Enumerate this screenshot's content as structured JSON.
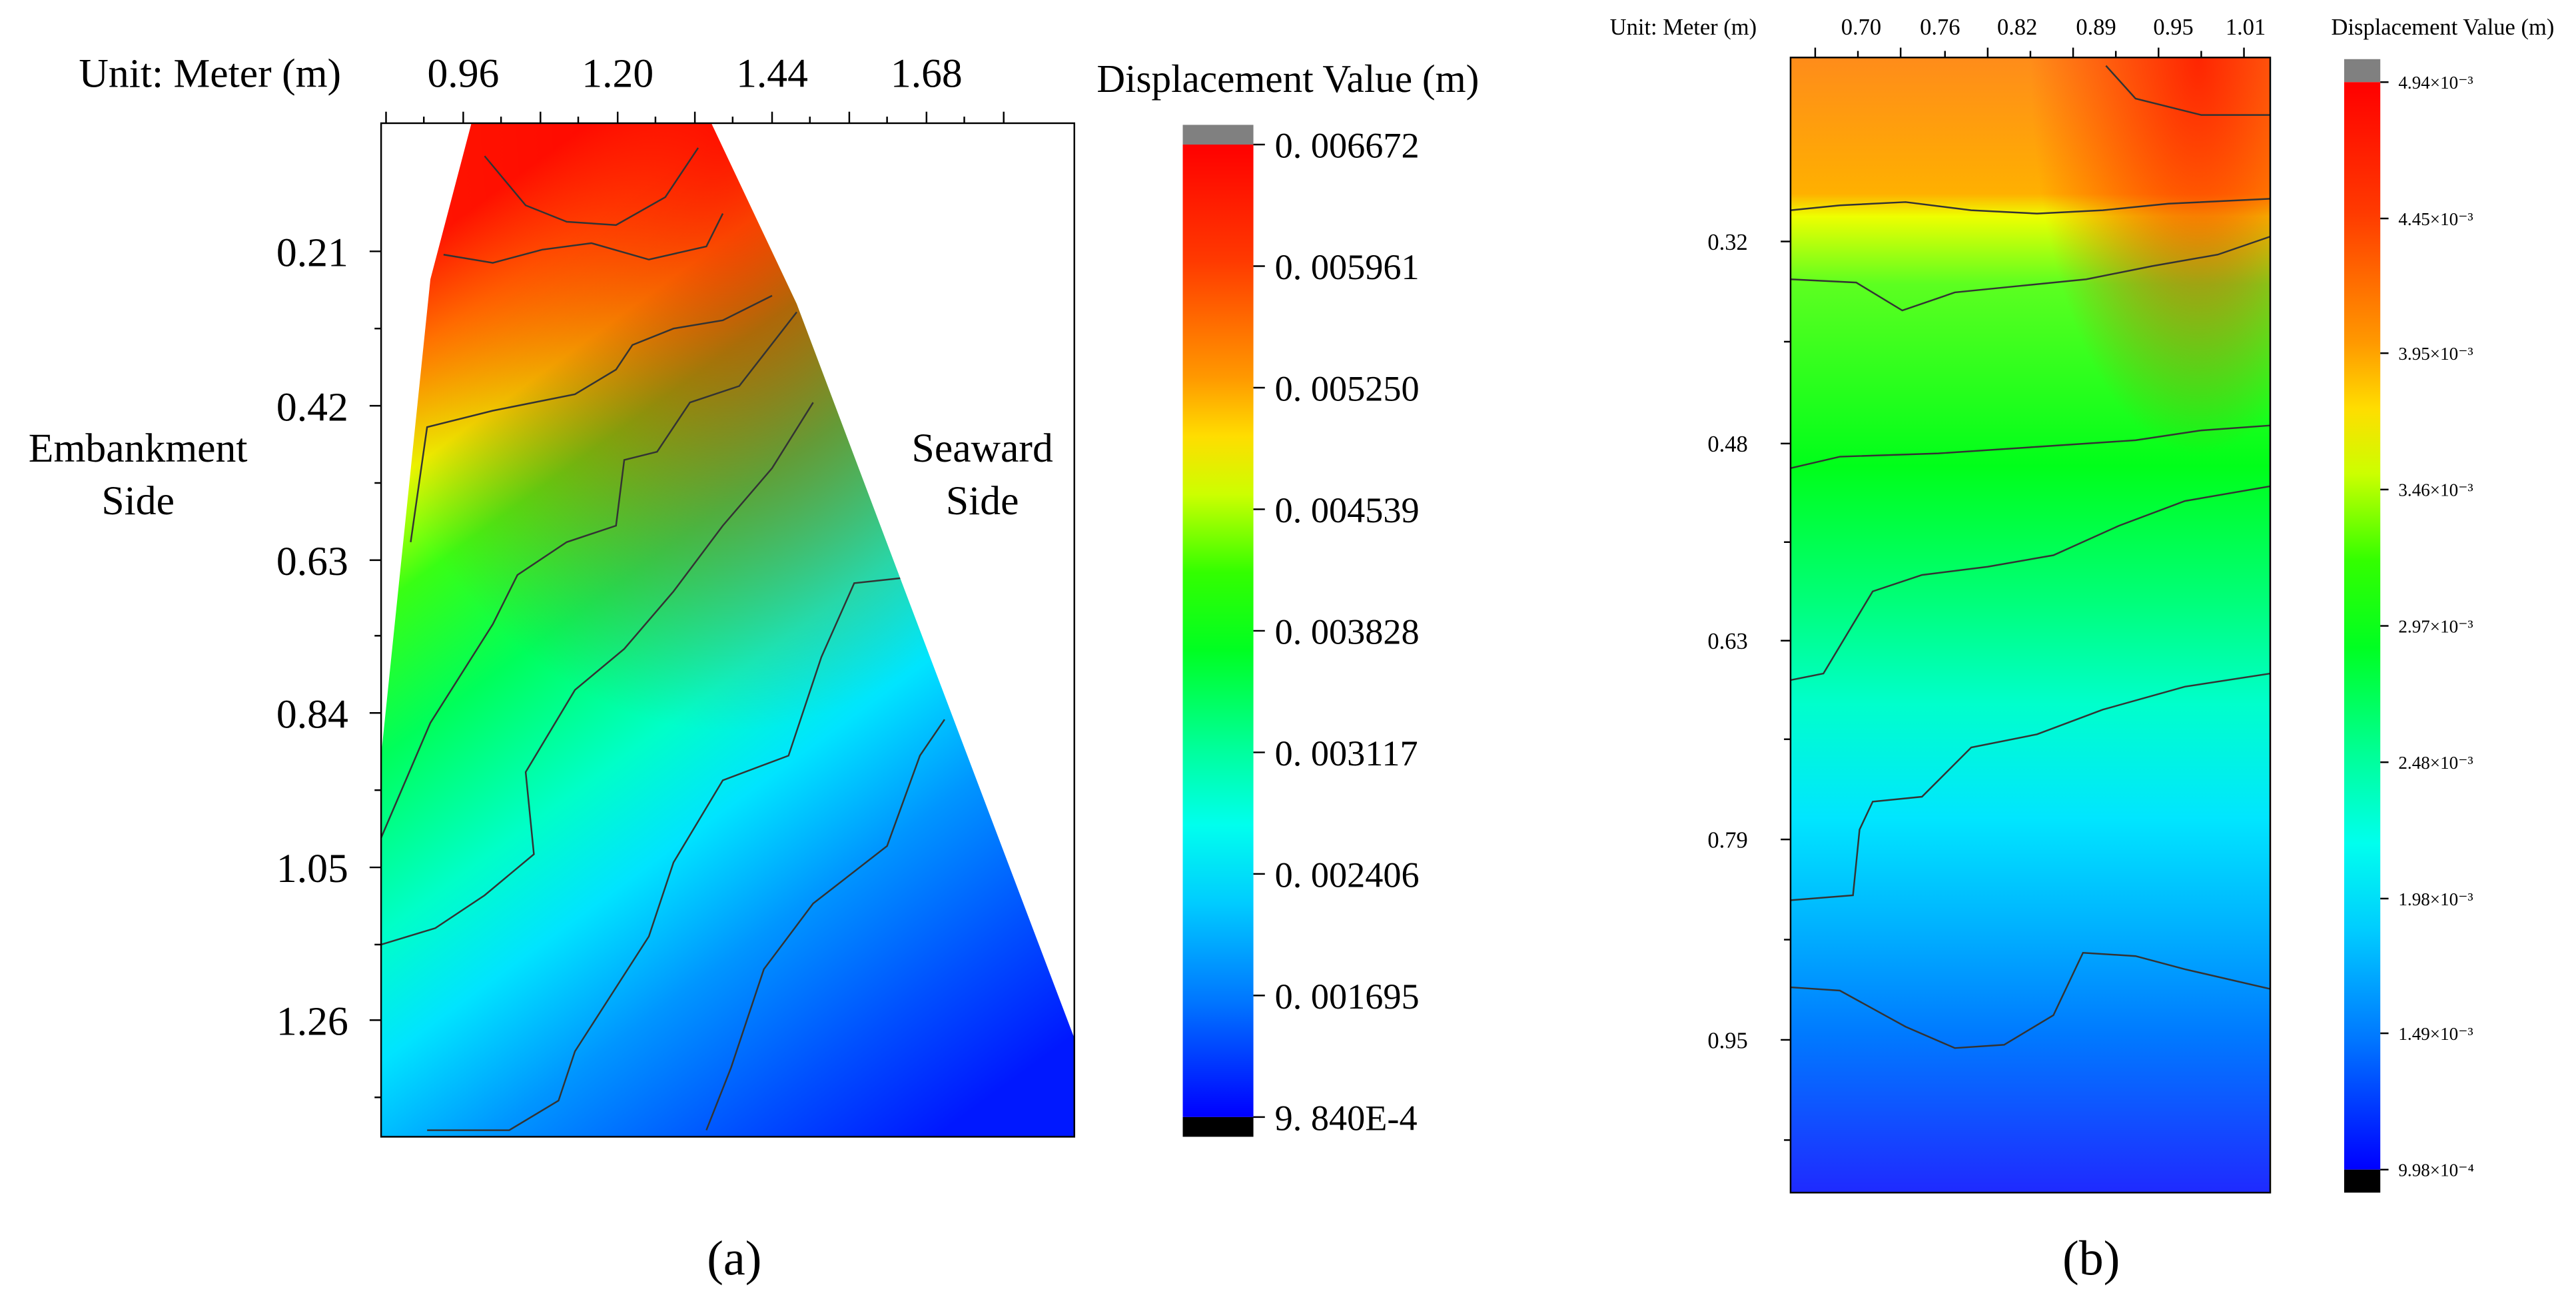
{
  "panels": [
    {
      "id": "a",
      "unit_label": "Unit: Meter (m)",
      "x_ticks": [
        "0.96",
        "1.20",
        "1.44",
        "1.68"
      ],
      "y_ticks": [
        "0.21",
        "0.42",
        "0.63",
        "0.84",
        "1.05",
        "1.26"
      ],
      "side_left": [
        "Embankment",
        "Side"
      ],
      "side_right": [
        "Seaward",
        "Side"
      ],
      "legend_title": "Displacement Value (m)",
      "legend_labels": [
        "0. 006672",
        "0. 005961",
        "0. 005250",
        "0. 004539",
        "0. 003828",
        "0. 003117",
        "0. 002406",
        "0. 001695",
        "9. 840E-4"
      ],
      "caption": "(a)"
    },
    {
      "id": "b",
      "unit_label": "Unit: Meter (m)",
      "x_ticks": [
        "0.70",
        "0.76",
        "0.82",
        "0.89",
        "0.95",
        "1.01"
      ],
      "y_ticks": [
        "0.32",
        "0.48",
        "0.63",
        "0.79",
        "0.95"
      ],
      "legend_title": "Displacement Value (m)",
      "legend_labels": [
        "4.94×10⁻³",
        "4.45×10⁻³",
        "3.95×10⁻³",
        "3.46×10⁻³",
        "2.97×10⁻³",
        "2.48×10⁻³",
        "1.98×10⁻³",
        "1.49×10⁻³",
        "9.98×10⁻⁴"
      ],
      "caption": "(b)"
    }
  ],
  "chart_data": [
    {
      "type": "heatmap",
      "title": "",
      "xlabel": "Unit: Meter (m)",
      "ylabel": "",
      "x_ticks": [
        0.96,
        1.2,
        1.44,
        1.68
      ],
      "y_ticks": [
        0.21,
        0.42,
        0.63,
        0.84,
        1.05,
        1.26
      ],
      "colorbar_title": "Displacement Value (m)",
      "colorbar_range": [
        0.000984,
        0.006672
      ],
      "colorbar_ticks": [
        0.006672,
        0.005961,
        0.00525,
        0.004539,
        0.003828,
        0.003117,
        0.002406,
        0.001695,
        0.000984
      ],
      "annotations": [
        "Embankment Side",
        "Seaward Side"
      ]
    },
    {
      "type": "heatmap",
      "title": "",
      "xlabel": "Unit: Meter (m)",
      "ylabel": "",
      "x_ticks": [
        0.7,
        0.76,
        0.82,
        0.89,
        0.95,
        1.01
      ],
      "y_ticks": [
        0.32,
        0.48,
        0.63,
        0.79,
        0.95
      ],
      "colorbar_title": "Displacement Value (m)",
      "colorbar_range": [
        0.000998,
        0.00494
      ],
      "colorbar_ticks": [
        0.00494,
        0.00445,
        0.00395,
        0.00346,
        0.00297,
        0.00248,
        0.00198,
        0.00149,
        0.000998
      ]
    }
  ],
  "colors": {
    "colormap": [
      "#0000ff",
      "#0077ff",
      "#00bfff",
      "#00ffff",
      "#00ff80",
      "#00ff00",
      "#ffff00",
      "#ffa500",
      "#ff4000",
      "#ff0000"
    ],
    "over": "#808080",
    "under": "#000000"
  }
}
